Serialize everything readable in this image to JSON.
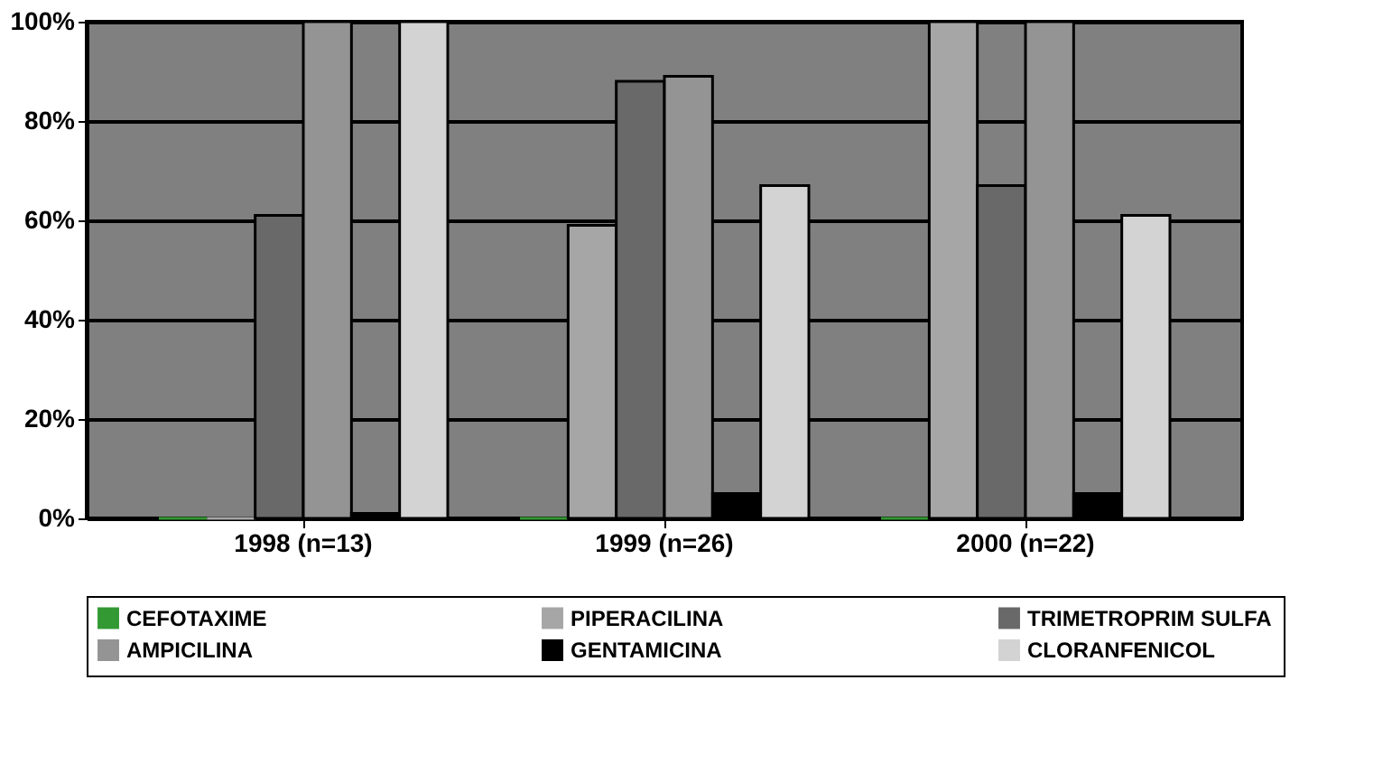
{
  "chart_data": {
    "type": "bar",
    "categories": [
      "1998 (n=13)",
      "1999 (n=26)",
      "2000 (n=22)"
    ],
    "series": [
      {
        "name": "CEFOTAXIME",
        "color": "#339933",
        "values": [
          0,
          0,
          0
        ]
      },
      {
        "name": "PIPERACILINA",
        "color": "#a6a6a6",
        "values": [
          0,
          59,
          100
        ]
      },
      {
        "name": "TRIMETROPRIM SULFA",
        "color": "#696969",
        "values": [
          61,
          88,
          67
        ]
      },
      {
        "name": "AMPICILINA",
        "color": "#949494",
        "values": [
          100,
          89,
          100
        ]
      },
      {
        "name": "GENTAMICINA",
        "color": "#000000",
        "values": [
          1,
          5,
          5
        ]
      },
      {
        "name": "CLORANFENICOL",
        "color": "#d3d3d3",
        "values": [
          100,
          67,
          61
        ]
      }
    ],
    "ylim": [
      0,
      100
    ],
    "yticks": [
      {
        "value": 0,
        "label": "0%"
      },
      {
        "value": 20,
        "label": "20%"
      },
      {
        "value": 40,
        "label": "40%"
      },
      {
        "value": 60,
        "label": "60%"
      },
      {
        "value": 80,
        "label": "80%"
      },
      {
        "value": 100,
        "label": "100%"
      }
    ],
    "grid": "y",
    "legend": "bottom"
  }
}
